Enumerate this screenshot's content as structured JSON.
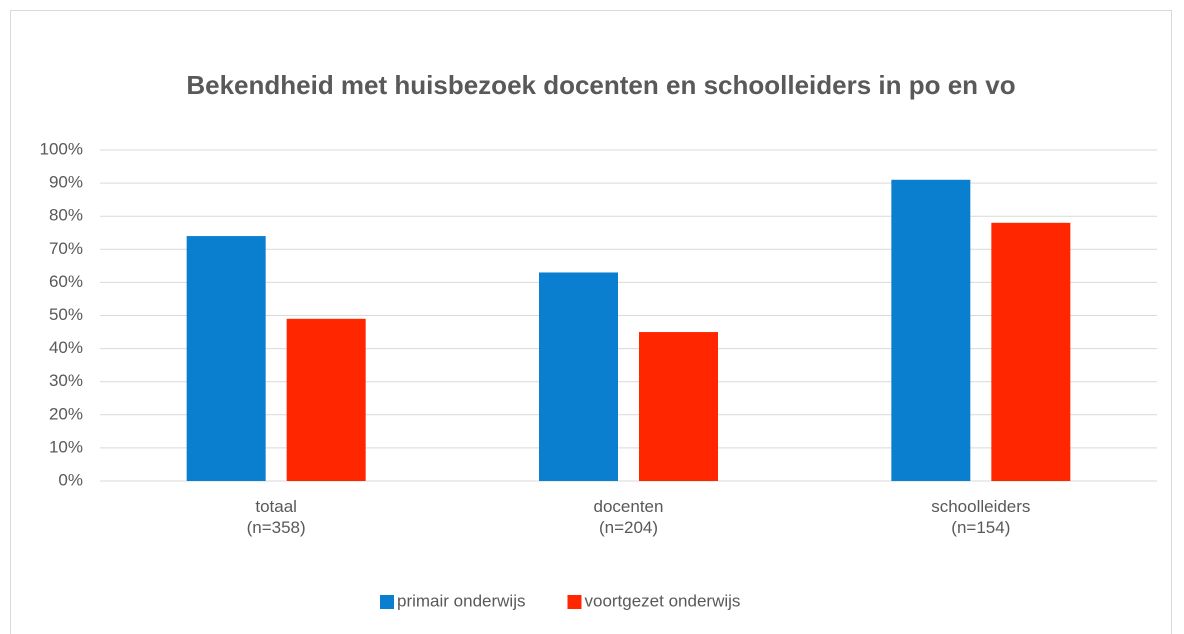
{
  "chart_data": {
    "type": "bar",
    "title": "Bekendheid met huisbezoek docenten en schoolleiders in po en vo",
    "categories": [
      "totaal\n(n=358)",
      "docenten\n(n=204)",
      "schoolleiders\n(n=154)"
    ],
    "series": [
      {
        "name": "primair onderwijs",
        "color": "#0a7fd0",
        "values": [
          74,
          63,
          91
        ]
      },
      {
        "name": "voortgezet onderwijs",
        "color": "#ff2600",
        "values": [
          49,
          45,
          78
        ]
      }
    ],
    "ylim": [
      0,
      100
    ],
    "yticks": [
      {
        "value": 0,
        "label": "0%"
      },
      {
        "value": 10,
        "label": "10%"
      },
      {
        "value": 20,
        "label": "20%"
      },
      {
        "value": 30,
        "label": "30%"
      },
      {
        "value": 40,
        "label": "40%"
      },
      {
        "value": 50,
        "label": "50%"
      },
      {
        "value": 60,
        "label": "60%"
      },
      {
        "value": 70,
        "label": "70%"
      },
      {
        "value": 80,
        "label": "80%"
      },
      {
        "value": 90,
        "label": "90%"
      },
      {
        "value": 100,
        "label": "100%"
      }
    ],
    "grid": true,
    "legend": "bottom"
  }
}
